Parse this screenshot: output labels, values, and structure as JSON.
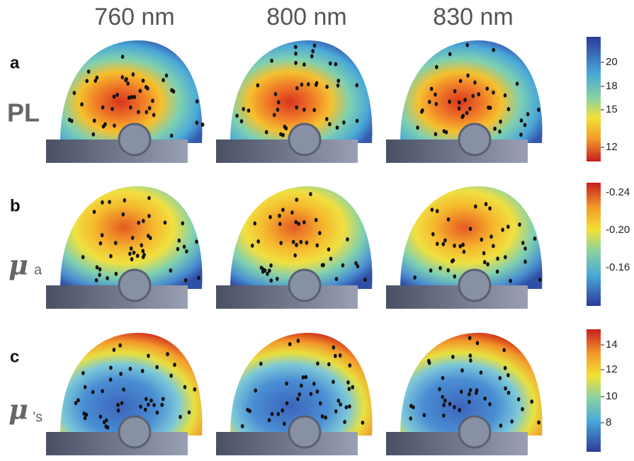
{
  "columns": [
    "760 nm",
    "800 nm",
    "830 nm"
  ],
  "rows": [
    {
      "letter": "a",
      "name": "PL",
      "colorbar_ticks": [
        "20",
        "18",
        "15",
        "12"
      ]
    },
    {
      "letter": "b",
      "name": "μ",
      "name_sub": "a",
      "colorbar_ticks": [
        "-0.24",
        "-0.20",
        "-0.16"
      ]
    },
    {
      "letter": "c",
      "name": "μ",
      "name_sub": "’s",
      "colorbar_ticks": [
        "14",
        "12",
        "10",
        "8"
      ]
    }
  ]
}
